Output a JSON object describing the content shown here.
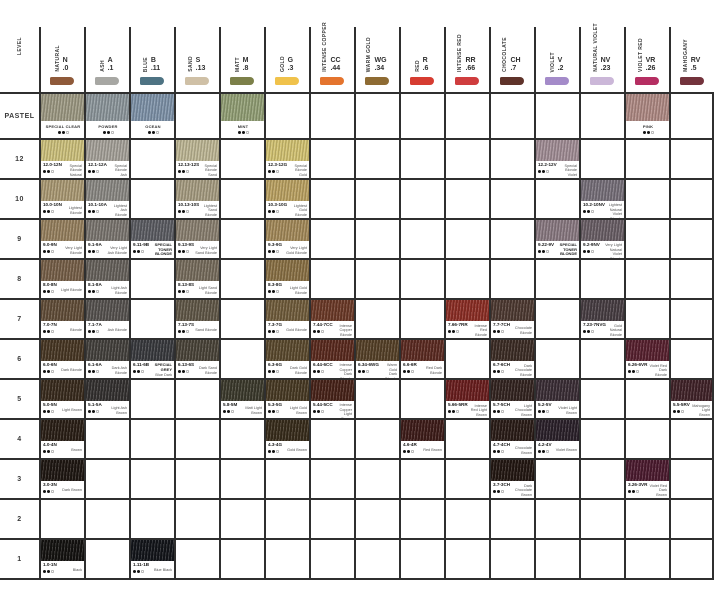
{
  "chart": {
    "level_header": "LEVEL",
    "columns": [
      {
        "name": "NATURAL",
        "letter": "N",
        "code": ".0",
        "pill_color": "#8f5a3a"
      },
      {
        "name": "ASH",
        "letter": "A",
        "code": ".1",
        "pill_color": "#a7a7a3"
      },
      {
        "name": "BLUE",
        "letter": "B",
        "code": ".11",
        "pill_color": "#4e7383"
      },
      {
        "name": "SAND",
        "letter": "S",
        "code": ".13",
        "pill_color": "#cfc0a6"
      },
      {
        "name": "MATT",
        "letter": "M",
        "code": ".8",
        "pill_color": "#7c8049"
      },
      {
        "name": "GOLD",
        "letter": "G",
        "code": ".3",
        "pill_color": "#f0c24b"
      },
      {
        "name": "INTENSE COPPER",
        "letter": "CC",
        "code": ".44",
        "pill_color": "#e4742e"
      },
      {
        "name": "WARM GOLD",
        "letter": "WG",
        "code": ".34",
        "pill_color": "#8e6b33"
      },
      {
        "name": "RED",
        "letter": "R",
        "code": ".6",
        "pill_color": "#d63c31"
      },
      {
        "name": "INTENSE RED",
        "letter": "RR",
        "code": ".66",
        "pill_color": "#cf3d3e"
      },
      {
        "name": "CHOCOLATE",
        "letter": "CH",
        "code": ".7",
        "pill_color": "#5f332a"
      },
      {
        "name": "VIOLET",
        "letter": "V",
        "code": ".2",
        "pill_color": "#a48bc9"
      },
      {
        "name": "NATURAL VIOLET",
        "letter": "NV",
        "code": ".23",
        "pill_color": "#cbb7d8"
      },
      {
        "name": "VIOLET RED",
        "letter": "VR",
        "code": ".26",
        "pill_color": "#b52e62"
      },
      {
        "name": "MAHOGANY",
        "letter": "RV",
        "code": ".5",
        "pill_color": "#73333c"
      }
    ],
    "rows": [
      {
        "level": "PASTEL",
        "cells": [
          {
            "col": 0,
            "name": "SPECIAL CLEAR",
            "dots": "●●○",
            "color": "#9e9a84"
          },
          {
            "col": 1,
            "name": "POWDER",
            "dots": "●●○",
            "color": "#8d979c"
          },
          {
            "col": 2,
            "name": "OCEAN",
            "dots": "●●○",
            "color": "#7f93a9"
          },
          {
            "col": 4,
            "name": "MINT",
            "dots": "●●○",
            "color": "#93a076"
          },
          {
            "col": 13,
            "name": "PINK",
            "dots": "●●○",
            "color": "#b08b85"
          }
        ]
      },
      {
        "level": "12",
        "cells": [
          {
            "col": 0,
            "code": "12.0-12N",
            "desc": "Special Blonde Natural",
            "dots": "●●○",
            "color": "#cdc17c"
          },
          {
            "col": 1,
            "code": "12.1-12A",
            "desc": "Special Blonde Ash",
            "dots": "●●○",
            "color": "#a6a29a"
          },
          {
            "col": 3,
            "code": "12.13-12S",
            "desc": "Special Blonde Sand",
            "dots": "●●○",
            "color": "#beb795"
          },
          {
            "col": 5,
            "code": "12.3-12G",
            "desc": "Special Blonde Gold",
            "dots": "●●○",
            "color": "#d3c372"
          },
          {
            "col": 11,
            "code": "12.2-12V",
            "desc": "Special Blonde Violet",
            "dots": "●●○",
            "color": "#a28e96"
          }
        ]
      },
      {
        "level": "10",
        "cells": [
          {
            "col": 0,
            "code": "10.0-10N",
            "desc": "Lightest Blonde",
            "dots": "●●○",
            "color": "#ab9a74"
          },
          {
            "col": 1,
            "code": "10.1-10A",
            "desc": "Lightest Ash Blonde",
            "dots": "●●○",
            "color": "#8b8984"
          },
          {
            "col": 3,
            "code": "10.13-10S",
            "desc": "Lightest Sand Blonde",
            "dots": "●●○",
            "color": "#a79d82"
          },
          {
            "col": 5,
            "code": "10.3-10G",
            "desc": "Lightest Gold Blonde",
            "dots": "●●○",
            "color": "#bba262"
          },
          {
            "col": 12,
            "code": "10.2-10NV",
            "desc": "Lightest Natural Violet Blonde",
            "dots": "●●○",
            "color": "#77707a"
          }
        ]
      },
      {
        "level": "9",
        "cells": [
          {
            "col": 0,
            "code": "9.0-9N",
            "desc": "Very Light Blonde",
            "dots": "●●○",
            "color": "#97815f"
          },
          {
            "col": 1,
            "code": "9.1-9A",
            "desc": "Very Light Ash Blonde",
            "dots": "●●○",
            "color": "#7b7670"
          },
          {
            "col": 2,
            "code": "9.11-9B",
            "note": "SPECIAL TONER BLONDE",
            "desc": "Very Light Blue Blonde",
            "dots": "●●○",
            "color": "#5c5d63"
          },
          {
            "col": 3,
            "code": "9.13-9S",
            "desc": "Very Light Sand Blonde",
            "dots": "●●○",
            "color": "#8a8070"
          },
          {
            "col": 5,
            "code": "9.3-9G",
            "desc": "Very Light Gold Blonde",
            "dots": "●●○",
            "color": "#a48a5a"
          },
          {
            "col": 11,
            "code": "9.22-9V",
            "note": "SPECIAL TONER BLONDE",
            "desc": "Very Light Violet Blonde",
            "dots": "●●○",
            "color": "#8a7a82"
          },
          {
            "col": 12,
            "code": "9.2-9NV",
            "desc": "Very Light Natural Violet Blonde",
            "dots": "●●○",
            "color": "#6a5f66"
          }
        ]
      },
      {
        "level": "8",
        "cells": [
          {
            "col": 0,
            "code": "8.0-8N",
            "desc": "Light Blonde",
            "dots": "●●○",
            "color": "#776049"
          },
          {
            "col": 1,
            "code": "8.1-8A",
            "desc": "Light Ash Blonde",
            "dots": "●●○",
            "color": "#67625c"
          },
          {
            "col": 3,
            "code": "8.13-8S",
            "desc": "Light Sand Blonde",
            "dots": "●●○",
            "color": "#776d5d"
          },
          {
            "col": 5,
            "code": "8.3-8G",
            "desc": "Light Gold Blonde",
            "dots": "●●○",
            "color": "#8a7145"
          }
        ]
      },
      {
        "level": "7",
        "cells": [
          {
            "col": 0,
            "code": "7.0-7N",
            "desc": "Blonde",
            "dots": "●●○",
            "color": "#624e39"
          },
          {
            "col": 1,
            "code": "7.1-7A",
            "desc": "Ash Blonde",
            "dots": "●●○",
            "color": "#575350"
          },
          {
            "col": 3,
            "code": "7.13-7S",
            "desc": "Sand Blonde",
            "dots": "●●○",
            "color": "#615848"
          },
          {
            "col": 5,
            "code": "7.3-7G",
            "desc": "Gold Blonde",
            "dots": "●●○",
            "color": "#715d3c"
          },
          {
            "col": 6,
            "code": "7.44-7CC",
            "desc": "Intense Copper Blonde",
            "dots": "●●○",
            "color": "#6c3a28"
          },
          {
            "col": 9,
            "code": "7.66-7RR",
            "desc": "Intense Red Blonde",
            "dots": "●●○",
            "color": "#8c2e25"
          },
          {
            "col": 10,
            "code": "7.7-7CH",
            "desc": "Chocolate Blonde",
            "dots": "●●○",
            "color": "#4e3a32"
          },
          {
            "col": 12,
            "code": "7.23-7NVG",
            "desc": "Gold Natural Blonde",
            "dots": "●●○",
            "color": "#483e43"
          }
        ]
      },
      {
        "level": "6",
        "cells": [
          {
            "col": 0,
            "code": "6.0-6N",
            "desc": "Dark Blonde",
            "dots": "●●○",
            "color": "#483724"
          },
          {
            "col": 1,
            "code": "6.1-6A",
            "desc": "Dark Ash Blonde",
            "dots": "●●○",
            "color": "#44413d"
          },
          {
            "col": 2,
            "code": "6.11-6B",
            "note": "SPECIAL GREY",
            "desc": "Blue Dark Blonde",
            "dots": "●●○",
            "color": "#393a3e"
          },
          {
            "col": 3,
            "code": "6.13-6S",
            "desc": "Dark Sand Blonde",
            "dots": "●●○",
            "color": "#4a4439"
          },
          {
            "col": 5,
            "code": "6.3-6G",
            "desc": "Dark Gold Blonde",
            "dots": "●●○",
            "color": "#5b4a2e"
          },
          {
            "col": 6,
            "code": "6.44-6CC",
            "desc": "Intense Copper Dark Blonde",
            "dots": "●●○",
            "color": "#5a2a1e"
          },
          {
            "col": 7,
            "code": "6.34-6WG",
            "desc": "Warm Gold Dark Blonde",
            "dots": "●●○",
            "color": "#564128"
          },
          {
            "col": 8,
            "code": "6.6-6R",
            "desc": "Red Dark Blonde",
            "dots": "●●○",
            "color": "#5c2b22"
          },
          {
            "col": 10,
            "code": "6.7-6CH",
            "desc": "Dark Chocolate Blonde",
            "dots": "●●○",
            "color": "#3c2c25"
          },
          {
            "col": 13,
            "code": "6.26-6VR",
            "desc": "Violet Red Dark Blonde",
            "dots": "●●○",
            "color": "#58212f"
          }
        ]
      },
      {
        "level": "5",
        "cells": [
          {
            "col": 0,
            "code": "5.0-5N",
            "desc": "Light Brown",
            "dots": "●●○",
            "color": "#392b1d"
          },
          {
            "col": 1,
            "code": "5.1-5A",
            "desc": "Light Ash Brown",
            "dots": "●●○",
            "color": "#343130"
          },
          {
            "col": 4,
            "code": "5.8-5M",
            "desc": "Matt Light Brown",
            "dots": "●●○",
            "color": "#3c3a2c"
          },
          {
            "col": 5,
            "code": "5.3-5G",
            "desc": "Light Gold Brown",
            "dots": "●●○",
            "color": "#483a24"
          },
          {
            "col": 6,
            "code": "5.44-5CC",
            "desc": "Intense Copper Light Brown",
            "dots": "●●○",
            "color": "#482319"
          },
          {
            "col": 9,
            "code": "5.66-5RR",
            "desc": "Intense Red Light Brown",
            "dots": "●●○",
            "color": "#6a1e1e"
          },
          {
            "col": 10,
            "code": "5.7-5CH",
            "desc": "Light Chocolate Brown",
            "dots": "●●○",
            "color": "#332420"
          },
          {
            "col": 11,
            "code": "5.2-5V",
            "desc": "Violet Light Brown",
            "dots": "●●○",
            "color": "#3b2e36"
          },
          {
            "col": 14,
            "code": "5.5-5RV",
            "desc": "Mahogany Light Brown",
            "dots": "●●○",
            "color": "#412329"
          }
        ]
      },
      {
        "level": "4",
        "cells": [
          {
            "col": 0,
            "code": "4.0-4N",
            "desc": "Brown",
            "dots": "●●○",
            "color": "#2a1f16"
          },
          {
            "col": 5,
            "code": "4.3-4G",
            "desc": "Gold Brown",
            "dots": "●●○",
            "color": "#382c1b"
          },
          {
            "col": 8,
            "code": "4.6-4R",
            "desc": "Red Brown",
            "dots": "●●○",
            "color": "#3e1c19"
          },
          {
            "col": 10,
            "code": "4.7-4CH",
            "desc": "Chocolate Brown",
            "dots": "●●○",
            "color": "#2a1c17"
          },
          {
            "col": 11,
            "code": "4.2-4V",
            "desc": "Violet Brown",
            "dots": "●●○",
            "color": "#2b212a"
          }
        ]
      },
      {
        "level": "3",
        "cells": [
          {
            "col": 0,
            "code": "3.0-3N",
            "desc": "Dark Brown",
            "dots": "●●○",
            "color": "#1f1712"
          },
          {
            "col": 10,
            "code": "3.7-3CH",
            "desc": "Dark Chocolate Brown",
            "dots": "●●○",
            "color": "#231712"
          },
          {
            "col": 13,
            "code": "3.26-3VR",
            "desc": "Violet Red Dark Brown",
            "dots": "●●○",
            "color": "#4c1b2f"
          }
        ]
      },
      {
        "level": "2",
        "cells": []
      },
      {
        "level": "1",
        "cells": [
          {
            "col": 0,
            "code": "1.0-1N",
            "desc": "Black",
            "dots": "●●○",
            "color": "#141210"
          },
          {
            "col": 2,
            "code": "1.11-1B",
            "desc": "Blue Black",
            "dots": "●●○",
            "color": "#13151a"
          }
        ]
      }
    ]
  }
}
